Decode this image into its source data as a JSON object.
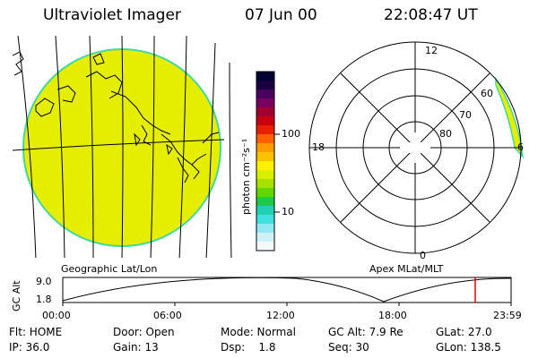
{
  "header": {
    "instrument": "Ultraviolet Imager",
    "date": "07 Jun 00",
    "time": "22:08:47 UT"
  },
  "colorbar": {
    "unit_label": "photon cm⁻²s⁻¹",
    "tick_labels": [
      "100",
      "10"
    ],
    "colors": [
      "#000033",
      "#1a0040",
      "#4a0060",
      "#7a0060",
      "#a00030",
      "#c80010",
      "#e82000",
      "#ff6000",
      "#ff9a00",
      "#ffc000",
      "#fff000",
      "#d8f000",
      "#a8e000",
      "#60d800",
      "#20c850",
      "#20d0b0",
      "#40e0e0",
      "#90e8f0",
      "#d0f0f8",
      "#f4f8fc"
    ]
  },
  "geo_panel": {
    "label": "Geographic Lat/Lon",
    "disk_color": "#e6ee00"
  },
  "polar_panel": {
    "label": "Apex MLat/MLT",
    "mlt_labels": [
      "12",
      "18",
      "6",
      "0"
    ],
    "lat_labels": [
      "60",
      "70",
      "80"
    ],
    "aurora_color": "#e6ee00"
  },
  "altitude_plot": {
    "ylabel": "GC Alt",
    "ytick_labels": [
      "9.0",
      "1.8"
    ],
    "xtick_labels": [
      "00:00",
      "06:00",
      "12:00",
      "18:00",
      "23:59"
    ],
    "marker_color": "#dd0000"
  },
  "info": {
    "row1": {
      "flt": "Flt: HOME",
      "door": "Door: Open",
      "mode": "Mode: Normal",
      "gcalt": "GC Alt: 7.9 Re",
      "glat": "GLat: 27.0"
    },
    "row2": {
      "ip": "IP: 36.0",
      "gain": "Gain: 13",
      "dsp": "Dsp:    1.8",
      "seq": "Seq: 30",
      "glon": "GLon: 138.5"
    }
  }
}
